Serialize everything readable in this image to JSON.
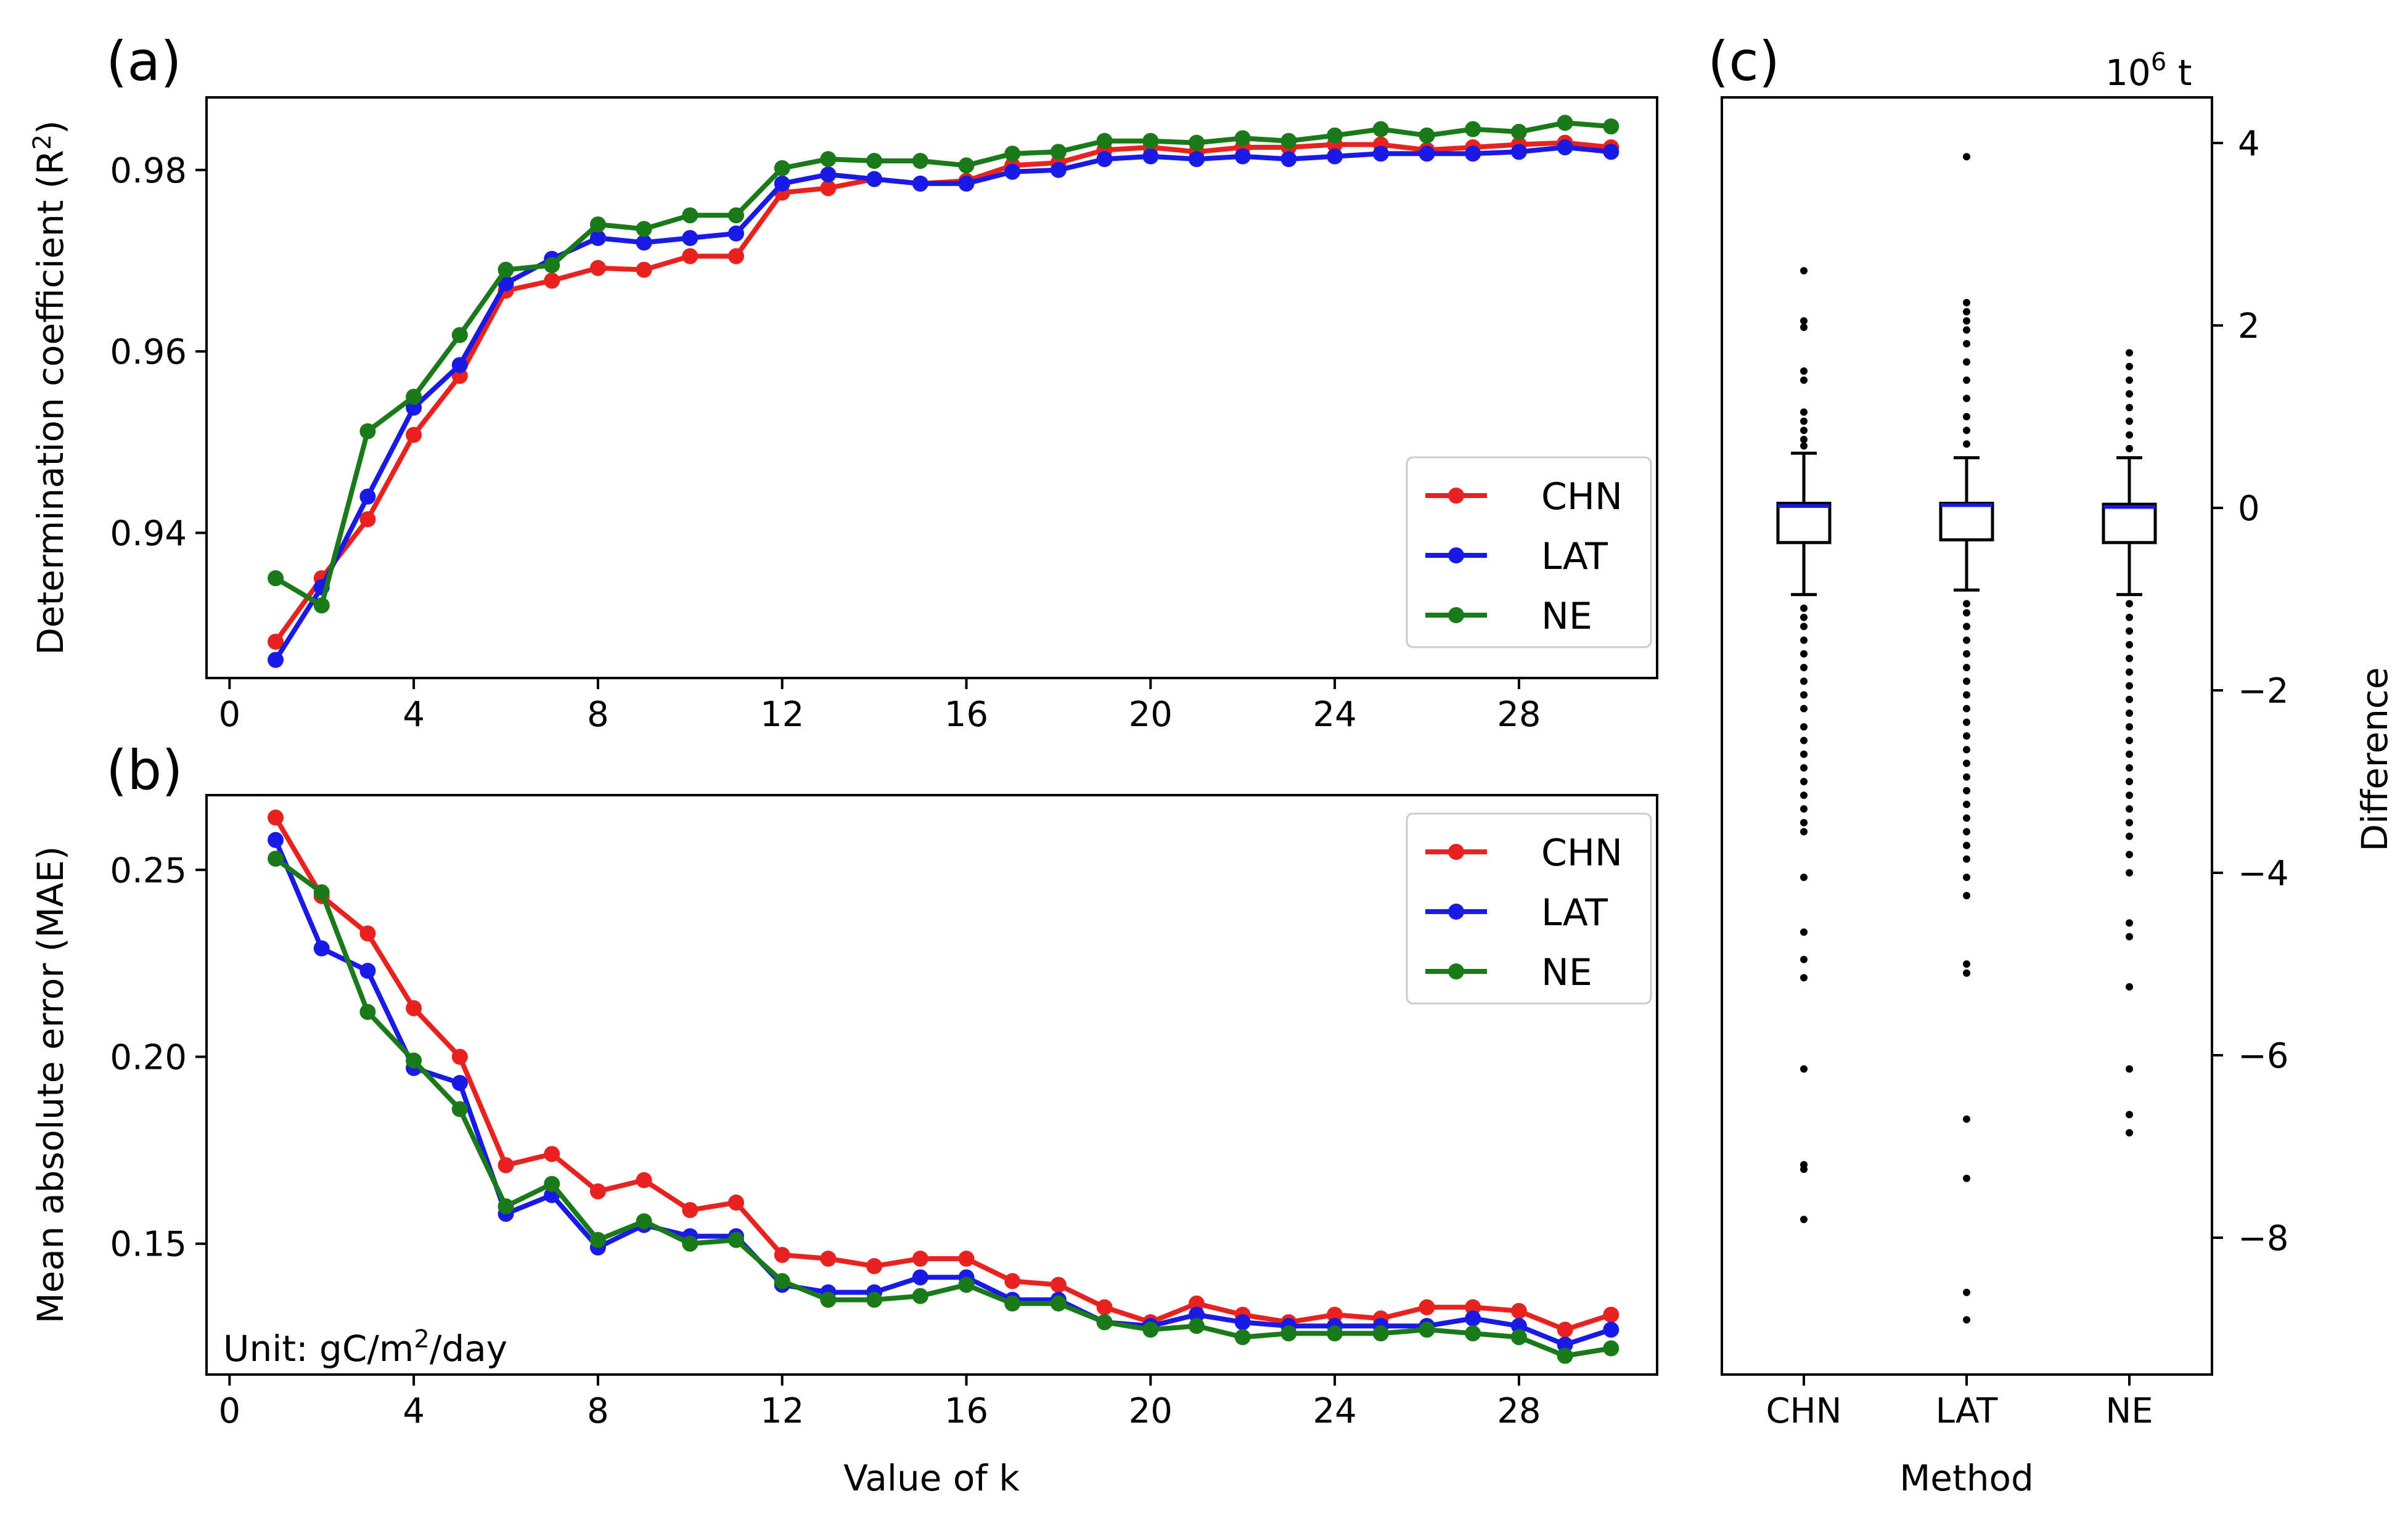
{
  "chart_data": [
    {
      "id": "a",
      "type": "line",
      "panel_label": "(a)",
      "xlabel": "",
      "ylabel": "Determination coefficient (R",
      "ylabel_sup": "2",
      "ylabel_suffix": ")",
      "xlim": [
        -0.5,
        31
      ],
      "ylim": [
        0.924,
        0.988
      ],
      "xticks": [
        0,
        4,
        8,
        12,
        16,
        20,
        24,
        28
      ],
      "yticks": [
        0.94,
        0.96,
        0.98
      ],
      "ytick_labels": [
        "0.94",
        "0.96",
        "0.98"
      ],
      "legend_position": "center-right",
      "x": [
        1,
        2,
        3,
        4,
        5,
        6,
        7,
        8,
        9,
        10,
        11,
        12,
        13,
        14,
        15,
        16,
        17,
        18,
        19,
        20,
        21,
        22,
        23,
        24,
        25,
        26,
        27,
        28,
        29,
        30
      ],
      "series": [
        {
          "name": "CHN",
          "color": "#e8221f",
          "values": [
            0.928,
            0.935,
            0.9415,
            0.9508,
            0.9573,
            0.9667,
            0.9678,
            0.9692,
            0.969,
            0.9705,
            0.9705,
            0.9775,
            0.978,
            0.979,
            0.9785,
            0.9788,
            0.9805,
            0.9808,
            0.9822,
            0.9825,
            0.982,
            0.9825,
            0.9825,
            0.9828,
            0.9828,
            0.9822,
            0.9825,
            0.9828,
            0.983,
            0.9825
          ]
        },
        {
          "name": "LAT",
          "color": "#1a1ae6",
          "values": [
            0.926,
            0.934,
            0.944,
            0.9538,
            0.9585,
            0.9675,
            0.9702,
            0.9725,
            0.972,
            0.9725,
            0.973,
            0.9785,
            0.9795,
            0.979,
            0.9785,
            0.9785,
            0.9798,
            0.98,
            0.9812,
            0.9815,
            0.9812,
            0.9815,
            0.9812,
            0.9815,
            0.9818,
            0.9818,
            0.9818,
            0.982,
            0.9825,
            0.982
          ]
        },
        {
          "name": "NE",
          "color": "#1a7a1a",
          "values": [
            0.935,
            0.932,
            0.9512,
            0.955,
            0.9618,
            0.969,
            0.9695,
            0.974,
            0.9735,
            0.975,
            0.975,
            0.9802,
            0.9812,
            0.981,
            0.981,
            0.9805,
            0.9818,
            0.982,
            0.9832,
            0.9832,
            0.983,
            0.9835,
            0.9832,
            0.9838,
            0.9845,
            0.9838,
            0.9845,
            0.9842,
            0.9852,
            0.9848
          ]
        }
      ]
    },
    {
      "id": "b",
      "type": "line",
      "panel_label": "(b)",
      "xlabel": "Value of k",
      "ylabel": "Mean absolute error (MAE)",
      "xlim": [
        -0.5,
        31
      ],
      "ylim": [
        0.115,
        0.27
      ],
      "xticks": [
        0,
        4,
        8,
        12,
        16,
        20,
        24,
        28
      ],
      "yticks": [
        0.15,
        0.2,
        0.25
      ],
      "ytick_labels": [
        "0.15",
        "0.20",
        "0.25"
      ],
      "legend_position": "top-right",
      "annotation": {
        "prefix": "Unit: gC/m",
        "sup": "2",
        "suffix": "/day"
      },
      "x": [
        1,
        2,
        3,
        4,
        5,
        6,
        7,
        8,
        9,
        10,
        11,
        12,
        13,
        14,
        15,
        16,
        17,
        18,
        19,
        20,
        21,
        22,
        23,
        24,
        25,
        26,
        27,
        28,
        29,
        30
      ],
      "series": [
        {
          "name": "CHN",
          "color": "#e8221f",
          "values": [
            0.264,
            0.243,
            0.233,
            0.213,
            0.2,
            0.171,
            0.174,
            0.164,
            0.167,
            0.159,
            0.161,
            0.147,
            0.146,
            0.144,
            0.146,
            0.146,
            0.14,
            0.139,
            0.133,
            0.129,
            0.134,
            0.131,
            0.129,
            0.131,
            0.13,
            0.133,
            0.133,
            0.132,
            0.127,
            0.131
          ]
        },
        {
          "name": "LAT",
          "color": "#1a1ae6",
          "values": [
            0.258,
            0.229,
            0.223,
            0.197,
            0.193,
            0.158,
            0.163,
            0.149,
            0.155,
            0.152,
            0.152,
            0.139,
            0.137,
            0.137,
            0.141,
            0.141,
            0.135,
            0.135,
            0.129,
            0.128,
            0.131,
            0.129,
            0.128,
            0.128,
            0.128,
            0.128,
            0.13,
            0.128,
            0.123,
            0.127
          ]
        },
        {
          "name": "NE",
          "color": "#1a7a1a",
          "values": [
            0.253,
            0.244,
            0.212,
            0.199,
            0.186,
            0.16,
            0.166,
            0.151,
            0.156,
            0.15,
            0.151,
            0.14,
            0.135,
            0.135,
            0.136,
            0.139,
            0.134,
            0.134,
            0.129,
            0.127,
            0.128,
            0.125,
            0.126,
            0.126,
            0.126,
            0.127,
            0.126,
            0.125,
            0.12,
            0.122
          ]
        }
      ]
    },
    {
      "id": "c",
      "type": "boxplot",
      "panel_label": "(c)",
      "xlabel": "Method",
      "ylabel": "Difference",
      "unit_label_base": "10",
      "unit_label_sup": "6",
      "unit_label_suffix": " t",
      "ylim": [
        -9.5,
        4.5
      ],
      "yticks": [
        -8,
        -6,
        -4,
        -2,
        0,
        2,
        4
      ],
      "ytick_labels": [
        "−8",
        "−6",
        "−4",
        "−2",
        "0",
        "2",
        "4"
      ],
      "median_color": "#1a1ae6",
      "categories": [
        "CHN",
        "LAT",
        "NE"
      ],
      "boxes": [
        {
          "name": "CHN",
          "q1": -0.38,
          "median": 0.02,
          "q3": 0.05,
          "whisker_low": -0.95,
          "whisker_high": 0.6,
          "outliers": [
            2.6,
            2.05,
            1.98,
            1.5,
            1.4,
            1.05,
            0.95,
            0.85,
            0.75,
            0.68,
            -1.1,
            -1.2,
            -1.3,
            -1.45,
            -1.6,
            -1.75,
            -1.9,
            -2.05,
            -2.2,
            -2.4,
            -2.55,
            -2.7,
            -2.85,
            -3.0,
            -3.15,
            -3.3,
            -3.45,
            -3.55,
            -4.05,
            -4.65,
            -4.95,
            -5.15,
            -6.15,
            -7.2,
            -7.25,
            -7.8
          ]
        },
        {
          "name": "LAT",
          "q1": -0.35,
          "median": 0.03,
          "q3": 0.05,
          "whisker_low": -0.9,
          "whisker_high": 0.55,
          "outliers": [
            3.85,
            2.25,
            2.15,
            2.05,
            1.95,
            1.8,
            1.6,
            1.4,
            1.2,
            1.0,
            0.85,
            0.7,
            -1.05,
            -1.15,
            -1.3,
            -1.45,
            -1.6,
            -1.75,
            -1.9,
            -2.05,
            -2.2,
            -2.35,
            -2.5,
            -2.65,
            -2.8,
            -2.95,
            -3.1,
            -3.25,
            -3.4,
            -3.55,
            -3.7,
            -3.85,
            -4.05,
            -4.25,
            -5.0,
            -5.1,
            -6.7,
            -7.35,
            -8.6,
            -8.9
          ]
        },
        {
          "name": "NE",
          "q1": -0.38,
          "median": 0.01,
          "q3": 0.04,
          "whisker_low": -0.95,
          "whisker_high": 0.55,
          "outliers": [
            1.7,
            1.55,
            1.4,
            1.25,
            1.1,
            0.95,
            0.8,
            0.65,
            -1.05,
            -1.2,
            -1.35,
            -1.5,
            -1.65,
            -1.8,
            -1.95,
            -2.1,
            -2.25,
            -2.4,
            -2.55,
            -2.7,
            -2.85,
            -3.0,
            -3.15,
            -3.3,
            -3.45,
            -3.6,
            -3.8,
            -4.0,
            -4.55,
            -4.7,
            -5.25,
            -6.15,
            -6.65,
            -6.85
          ]
        }
      ]
    }
  ]
}
